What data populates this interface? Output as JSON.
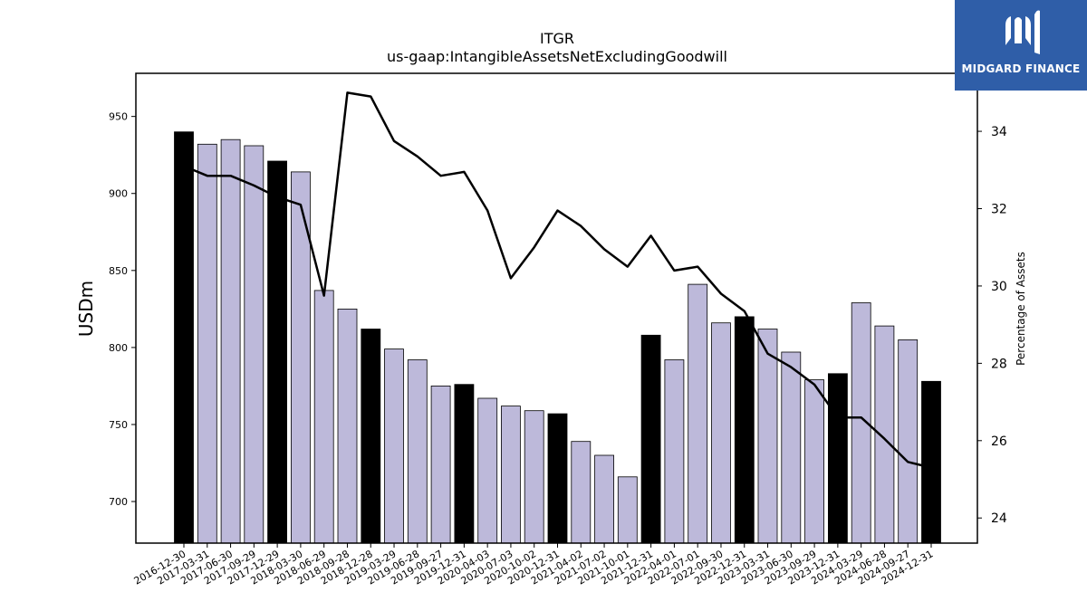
{
  "brand": {
    "name": "MIDGARD FINANCE",
    "color": "#2f5ea8"
  },
  "chart_data": {
    "type": "bar",
    "title": "ITGR",
    "subtitle": "us-gaap:IntangibleAssetsNetExcludingGoodwill",
    "ylabel": "USDm",
    "y2label": "Percentage of Assets",
    "ylim": [
      673,
      978
    ],
    "y2lim": [
      23.35,
      35.5
    ],
    "yticks": [
      700,
      750,
      800,
      850,
      900,
      950
    ],
    "y2ticks": [
      24,
      26,
      28,
      30,
      32,
      34
    ],
    "categories": [
      "2016-12-30",
      "2017-03-31",
      "2017-06-30",
      "2017-09-29",
      "2017-12-29",
      "2018-03-30",
      "2018-06-29",
      "2018-09-28",
      "2018-12-28",
      "2019-03-29",
      "2019-06-28",
      "2019-09-27",
      "2019-12-31",
      "2020-04-03",
      "2020-07-03",
      "2020-10-02",
      "2020-12-31",
      "2021-04-02",
      "2021-07-02",
      "2021-10-01",
      "2021-12-31",
      "2022-04-01",
      "2022-07-01",
      "2022-09-30",
      "2022-12-31",
      "2023-03-31",
      "2023-06-30",
      "2023-09-29",
      "2023-12-31",
      "2024-03-29",
      "2024-06-28",
      "2024-09-27",
      "2024-12-31"
    ],
    "series": [
      {
        "kind": "bar",
        "values": [
          940,
          932,
          935,
          931,
          921,
          914,
          837,
          825,
          812,
          799,
          792,
          775,
          776,
          767,
          762,
          759,
          757,
          739,
          730,
          716,
          808,
          792,
          841,
          816,
          820,
          812,
          797,
          779,
          783,
          829,
          814,
          805,
          778
        ],
        "fiscal_year_end": [
          true,
          false,
          false,
          false,
          true,
          false,
          false,
          false,
          true,
          false,
          false,
          false,
          true,
          false,
          false,
          false,
          true,
          false,
          false,
          false,
          true,
          false,
          false,
          false,
          true,
          false,
          false,
          false,
          true,
          false,
          false,
          false,
          true
        ],
        "color": "#bdb9da",
        "highlight_color": "#000000"
      },
      {
        "kind": "line",
        "axis": "right",
        "values": [
          33.1,
          32.85,
          32.85,
          32.6,
          32.3,
          32.1,
          29.75,
          35.0,
          34.9,
          33.75,
          33.35,
          32.85,
          32.95,
          31.95,
          30.2,
          31.0,
          31.95,
          31.55,
          30.95,
          30.5,
          31.3,
          30.4,
          30.5,
          29.8,
          29.35,
          28.25,
          27.9,
          27.45,
          26.6,
          26.6,
          26.05,
          25.45,
          25.3
        ],
        "color": "#000000"
      }
    ],
    "grid": false
  }
}
